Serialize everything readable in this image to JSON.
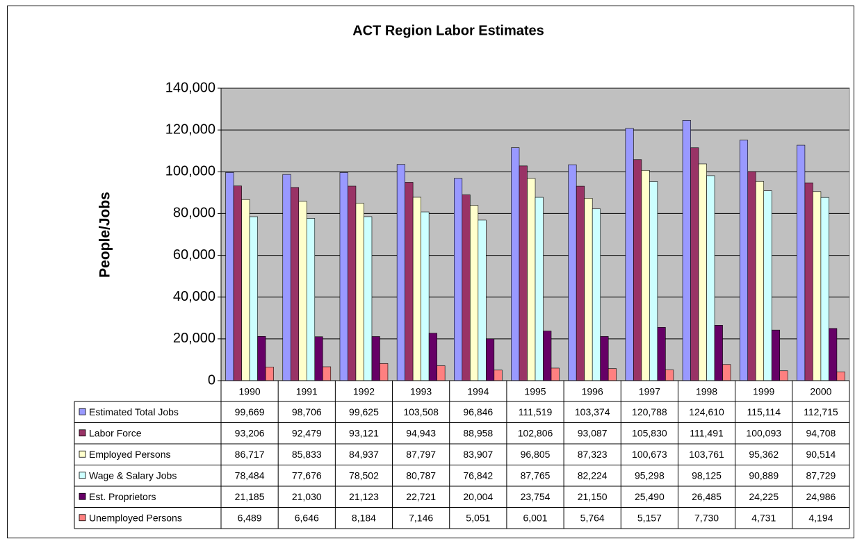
{
  "chart_data": {
    "type": "bar",
    "title": "ACT Region Labor Estimates",
    "y_label": "People/Jobs",
    "categories": [
      "1990",
      "1991",
      "1992",
      "1993",
      "1994",
      "1995",
      "1996",
      "1997",
      "1998",
      "1999",
      "2000"
    ],
    "ylim": [
      0,
      140000
    ],
    "yticks": [
      0,
      {
        "value": 20000,
        "label": "20,000"
      },
      {
        "value": 40000,
        "label": "40,000"
      },
      {
        "value": 60000,
        "label": "60,000"
      },
      {
        "value": 80000,
        "label": "80,000"
      },
      {
        "value": 100000,
        "label": "100,000"
      },
      {
        "value": 120000,
        "label": "120,000"
      },
      {
        "value": 140000,
        "label": "140,000"
      }
    ],
    "grid": true,
    "plot_background": "#c0c0c0",
    "series": [
      {
        "name": "Estimated Total Jobs",
        "color": "#9999ff",
        "values": [
          99669,
          98706,
          99625,
          103508,
          96846,
          111519,
          103374,
          120788,
          124610,
          115114,
          112715
        ],
        "value_labels": [
          "99,669",
          "98,706",
          "99,625",
          "103,508",
          "96,846",
          "111,519",
          "103,374",
          "120,788",
          "124,610",
          "115,114",
          "112,715"
        ]
      },
      {
        "name": "Labor Force",
        "color": "#993366",
        "values": [
          93206,
          92479,
          93121,
          94943,
          88958,
          102806,
          93087,
          105830,
          111491,
          100093,
          94708
        ],
        "value_labels": [
          "93,206",
          "92,479",
          "93,121",
          "94,943",
          "88,958",
          "102,806",
          "93,087",
          "105,830",
          "111,491",
          "100,093",
          "94,708"
        ]
      },
      {
        "name": "Employed Persons",
        "color": "#ffffcc",
        "values": [
          86717,
          85833,
          84937,
          87797,
          83907,
          96805,
          87323,
          100673,
          103761,
          95362,
          90514
        ],
        "value_labels": [
          "86,717",
          "85,833",
          "84,937",
          "87,797",
          "83,907",
          "96,805",
          "87,323",
          "100,673",
          "103,761",
          "95,362",
          "90,514"
        ]
      },
      {
        "name": "Wage & Salary Jobs",
        "color": "#ccffff",
        "values": [
          78484,
          77676,
          78502,
          80787,
          76842,
          87765,
          82224,
          95298,
          98125,
          90889,
          87729
        ],
        "value_labels": [
          "78,484",
          "77,676",
          "78,502",
          "80,787",
          "76,842",
          "87,765",
          "82,224",
          "95,298",
          "98,125",
          "90,889",
          "87,729"
        ]
      },
      {
        "name": "Est. Proprietors",
        "color": "#660066",
        "values": [
          21185,
          21030,
          21123,
          22721,
          20004,
          23754,
          21150,
          25490,
          26485,
          24225,
          24986
        ],
        "value_labels": [
          "21,185",
          "21,030",
          "21,123",
          "22,721",
          "20,004",
          "23,754",
          "21,150",
          "25,490",
          "26,485",
          "24,225",
          "24,986"
        ]
      },
      {
        "name": "Unemployed Persons",
        "color": "#ff8080",
        "values": [
          6489,
          6646,
          8184,
          7146,
          5051,
          6001,
          5764,
          5157,
          7730,
          4731,
          4194
        ],
        "value_labels": [
          "6,489",
          "6,646",
          "8,184",
          "7,146",
          "5,051",
          "6,001",
          "5,764",
          "5,157",
          "7,730",
          "4,731",
          "4,194"
        ]
      }
    ]
  }
}
